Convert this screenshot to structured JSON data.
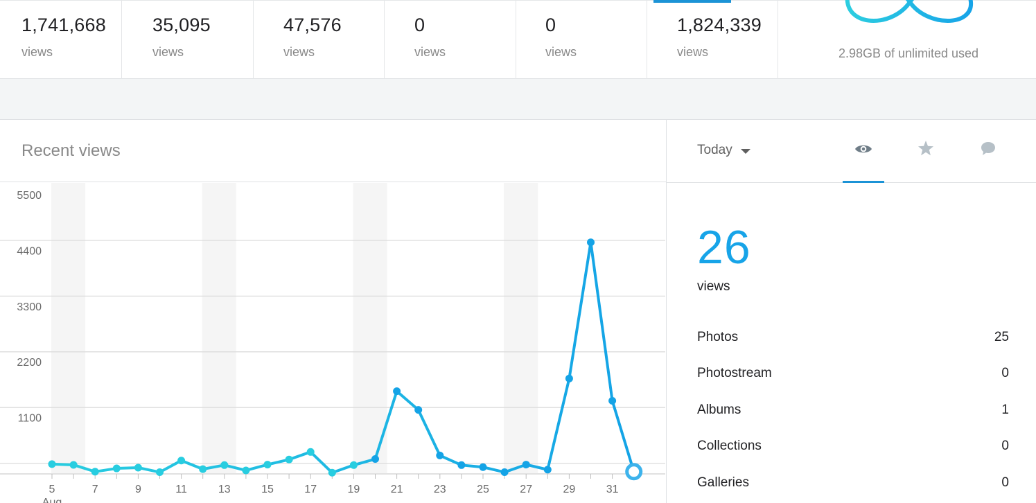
{
  "stats": [
    {
      "value": "1,741,668",
      "label": "views"
    },
    {
      "value": "35,095",
      "label": "views"
    },
    {
      "value": "47,576",
      "label": "views"
    },
    {
      "value": "0",
      "label": "views"
    },
    {
      "value": "0",
      "label": "views"
    },
    {
      "value": "1,824,339",
      "label": "views"
    }
  ],
  "storage": {
    "text": "2.98GB of unlimited used"
  },
  "chart_panel": {
    "title": "Recent views"
  },
  "chart_data": {
    "type": "line",
    "title": "Recent views",
    "x": [
      "5",
      "6",
      "7",
      "8",
      "9",
      "10",
      "11",
      "12",
      "13",
      "14",
      "15",
      "16",
      "17",
      "18",
      "19",
      "20",
      "21",
      "22",
      "23",
      "24",
      "25",
      "26",
      "27",
      "28",
      "29",
      "30",
      "31",
      "1"
    ],
    "x_tick_labels": [
      "5",
      "7",
      "9",
      "11",
      "13",
      "15",
      "17",
      "19",
      "21",
      "23",
      "25",
      "27",
      "29",
      "31"
    ],
    "x_sub_label": "Aug",
    "y_ticks": [
      "5500",
      "4400",
      "3300",
      "2200",
      "1100"
    ],
    "ylim": [
      0,
      5500
    ],
    "series": [
      {
        "values": [
          180,
          165,
          30,
          95,
          110,
          20,
          250,
          80,
          160,
          55,
          170,
          270,
          420,
          10,
          160,
          280,
          1620,
          1250,
          350,
          160,
          120,
          20,
          170,
          70,
          1870,
          4560,
          1430,
          30
        ]
      }
    ],
    "weekend_shading": [
      [
        "5",
        "6"
      ],
      [
        "12",
        "13"
      ],
      [
        "19",
        "20"
      ],
      [
        "26",
        "27"
      ]
    ],
    "colors": {
      "line_start": "#28cde0",
      "line_end": "#14a3e6",
      "shading": "#f5f5f5",
      "grid": "#dcdcdc"
    },
    "grid": true
  },
  "side": {
    "period": "Today",
    "tabs": [
      {
        "icon": "eye-icon",
        "active": true
      },
      {
        "icon": "star-icon",
        "active": false
      },
      {
        "icon": "comment-icon",
        "active": false
      }
    ],
    "total": "26",
    "total_label": "views",
    "rows": [
      {
        "label": "Photos",
        "value": "25"
      },
      {
        "label": "Photostream",
        "value": "0"
      },
      {
        "label": "Albums",
        "value": "1"
      },
      {
        "label": "Collections",
        "value": "0"
      },
      {
        "label": "Galleries",
        "value": "0"
      }
    ]
  },
  "colors": {
    "accent": "#1c93d6",
    "big_number": "#17a4e8"
  }
}
